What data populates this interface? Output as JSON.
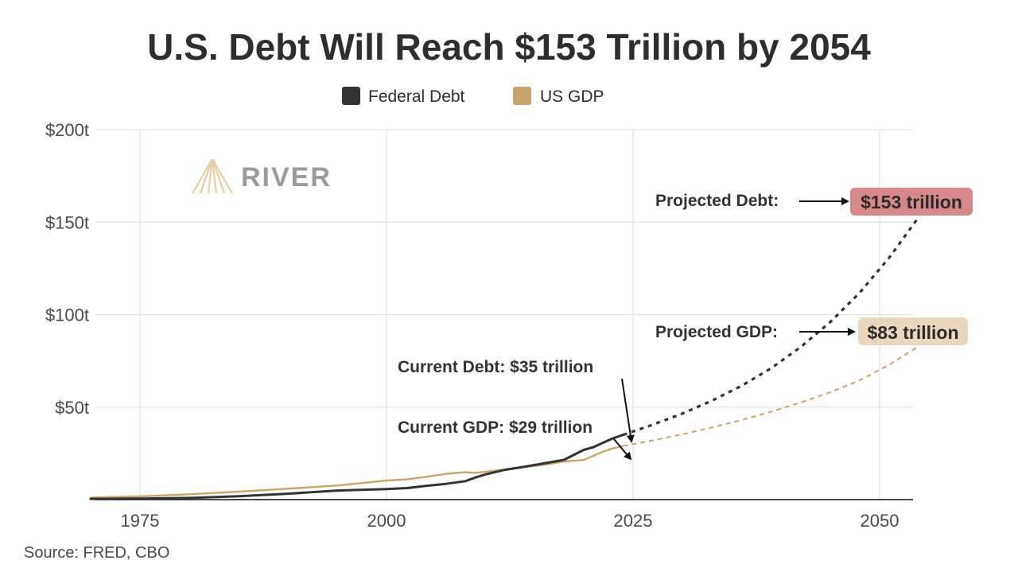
{
  "chart_data": {
    "type": "line",
    "title": "U.S. Debt Will Reach $153 Trillion by 2054",
    "xlabel": "",
    "ylabel": "",
    "xlim": [
      1970,
      2054
    ],
    "ylim": [
      0,
      200
    ],
    "y_ticks": [
      {
        "value": 50,
        "label": "$50t"
      },
      {
        "value": 100,
        "label": "$100t"
      },
      {
        "value": 150,
        "label": "$150t"
      },
      {
        "value": 200,
        "label": "$200t"
      }
    ],
    "x_ticks": [
      {
        "value": 1975,
        "label": "1975"
      },
      {
        "value": 2000,
        "label": "2000"
      },
      {
        "value": 2025,
        "label": "2025"
      },
      {
        "value": 2050,
        "label": "2050"
      }
    ],
    "legend": [
      {
        "name": "Federal Debt",
        "color": "#333333"
      },
      {
        "name": "US GDP",
        "color": "#c9a56a"
      }
    ],
    "series": [
      {
        "name": "Federal Debt",
        "color": "#333333",
        "historical": {
          "x": [
            1970,
            1975,
            1980,
            1985,
            1990,
            1995,
            2000,
            2002,
            2004,
            2006,
            2008,
            2009,
            2010,
            2012,
            2014,
            2016,
            2018,
            2020,
            2021,
            2022,
            2023,
            2024
          ],
          "y": [
            0.4,
            0.5,
            0.9,
            1.8,
            3.2,
            4.9,
            5.7,
            6.2,
            7.4,
            8.5,
            10.0,
            11.9,
            13.6,
            16.1,
            17.8,
            19.6,
            21.5,
            26.9,
            28.4,
            30.9,
            33.2,
            35.0
          ]
        },
        "projected": {
          "x": [
            2024,
            2027,
            2030,
            2033,
            2036,
            2039,
            2042,
            2045,
            2048,
            2051,
            2054
          ],
          "y": [
            35.0,
            40.5,
            46.5,
            53.5,
            61.5,
            71.0,
            82.5,
            96.0,
            112.0,
            131.0,
            153.0
          ]
        }
      },
      {
        "name": "US GDP",
        "color": "#c9a56a",
        "historical": {
          "x": [
            1970,
            1975,
            1980,
            1985,
            1990,
            1995,
            2000,
            2002,
            2004,
            2006,
            2008,
            2009,
            2010,
            2012,
            2014,
            2016,
            2018,
            2020,
            2021,
            2022,
            2023,
            2024
          ],
          "y": [
            1.1,
            1.7,
            2.9,
            4.3,
            5.9,
            7.6,
            10.3,
            10.9,
            12.3,
            13.9,
            14.8,
            14.5,
            15.0,
            16.3,
            17.6,
            18.8,
            20.6,
            21.4,
            23.7,
            26.0,
            27.8,
            29.0
          ]
        },
        "projected": {
          "x": [
            2024,
            2027,
            2030,
            2033,
            2036,
            2039,
            2042,
            2045,
            2048,
            2051,
            2054
          ],
          "y": [
            29.0,
            32.0,
            35.3,
            39.0,
            43.0,
            47.5,
            52.5,
            58.0,
            64.5,
            73.0,
            83.0
          ]
        }
      }
    ],
    "annotations": {
      "current_debt": "Current Debt: $35 trillion",
      "current_gdp": "Current GDP: $29 trillion",
      "projected_debt_label": "Projected Debt:",
      "projected_debt_value": "$153 trillion",
      "projected_gdp_label": "Projected GDP:",
      "projected_gdp_value": "$83 trillion"
    }
  },
  "logo": {
    "text": "RIVER"
  },
  "source": "Source: FRED, CBO",
  "colors": {
    "debt": "#333333",
    "gdp": "#c9a56a",
    "debt_callout_bg": "#d7888b",
    "gdp_callout_bg": "#e9d8bd"
  }
}
